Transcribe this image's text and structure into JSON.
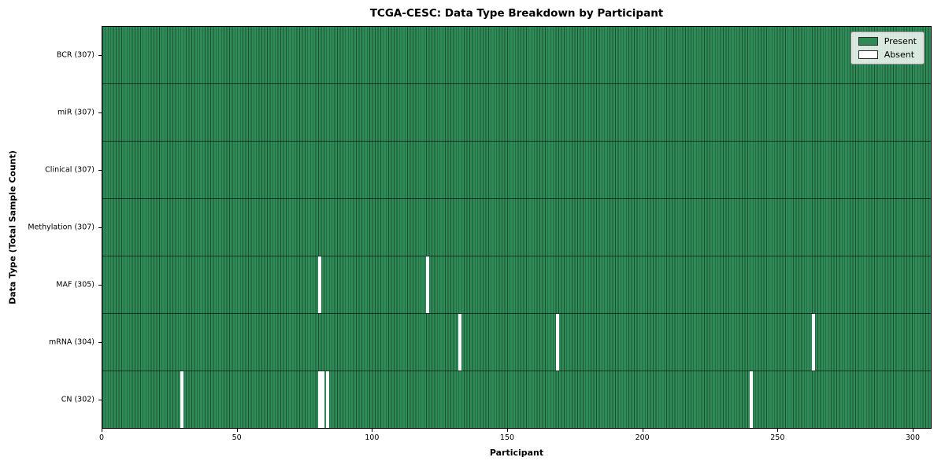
{
  "chart_data": {
    "type": "heatmap",
    "title": "TCGA-CESC: Data Type Breakdown by Participant",
    "xlabel": "Participant",
    "ylabel": "Data Type (Total Sample Count)",
    "total_participants": 307,
    "x_ticks": [
      0,
      50,
      100,
      150,
      200,
      250,
      300
    ],
    "x_range": [
      0,
      307
    ],
    "grid": false,
    "legend_position": "upper right",
    "legend": [
      {
        "label": "Present",
        "color": "#2e8b57"
      },
      {
        "label": "Absent",
        "color": "#ffffff"
      }
    ],
    "colors": {
      "present": "#2e8b57",
      "cell_edge": "#1d5334",
      "absent": "#ffffff",
      "row_divider": "rgba(0,0,0,0.6)"
    },
    "rows": [
      {
        "id": "bcr",
        "label": "BCR (307)",
        "data_type": "BCR",
        "present_count": 307,
        "absent_participants": []
      },
      {
        "id": "mir",
        "label": "miR (307)",
        "data_type": "miR",
        "present_count": 307,
        "absent_participants": []
      },
      {
        "id": "clinical",
        "label": "Clinical (307)",
        "data_type": "Clinical",
        "present_count": 307,
        "absent_participants": []
      },
      {
        "id": "methylation",
        "label": "Methylation (307)",
        "data_type": "Methylation",
        "present_count": 307,
        "absent_participants": []
      },
      {
        "id": "maf",
        "label": "MAF (305)",
        "data_type": "MAF",
        "present_count": 305,
        "absent_participants": [
          80,
          120
        ]
      },
      {
        "id": "mrna",
        "label": "mRNA (304)",
        "data_type": "mRNA",
        "present_count": 304,
        "absent_participants": [
          132,
          168,
          263
        ]
      },
      {
        "id": "cn",
        "label": "CN (302)",
        "data_type": "CN",
        "present_count": 302,
        "absent_participants": [
          29,
          80,
          81,
          83,
          240
        ]
      }
    ]
  }
}
